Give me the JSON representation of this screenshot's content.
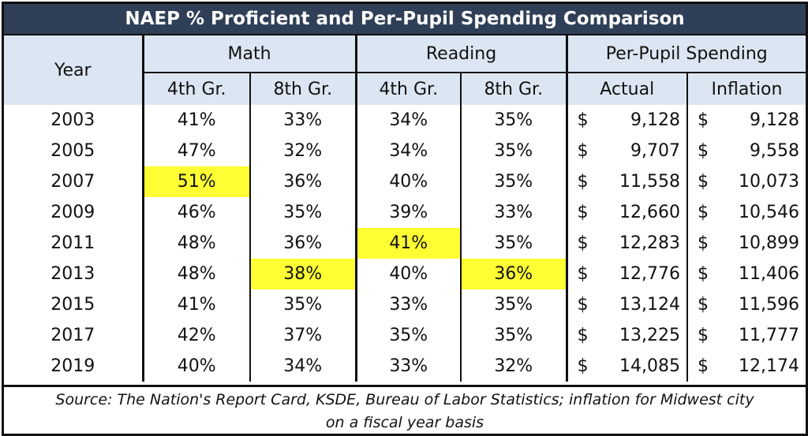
{
  "chart_data": {
    "type": "table",
    "title": "NAEP % Proficient and Per-Pupil Spending Comparison",
    "header": {
      "year": "Year",
      "groups": [
        "Math",
        "Reading",
        "Per-Pupil Spending"
      ],
      "columns": [
        "4th Gr.",
        "8th Gr.",
        "4th Gr.",
        "8th Gr.",
        "Actual",
        "Inflation"
      ]
    },
    "currency_symbol": "$",
    "rows": [
      {
        "year": "2003",
        "math4": "41%",
        "math8": "33%",
        "read4": "34%",
        "read8": "35%",
        "actual": "9,128",
        "inflation": "9,128"
      },
      {
        "year": "2005",
        "math4": "47%",
        "math8": "32%",
        "read4": "34%",
        "read8": "35%",
        "actual": "9,707",
        "inflation": "9,558"
      },
      {
        "year": "2007",
        "math4": "51%",
        "math8": "36%",
        "read4": "40%",
        "read8": "35%",
        "actual": "11,558",
        "inflation": "10,073"
      },
      {
        "year": "2009",
        "math4": "46%",
        "math8": "35%",
        "read4": "39%",
        "read8": "33%",
        "actual": "12,660",
        "inflation": "10,546"
      },
      {
        "year": "2011",
        "math4": "48%",
        "math8": "36%",
        "read4": "41%",
        "read8": "35%",
        "actual": "12,283",
        "inflation": "10,899"
      },
      {
        "year": "2013",
        "math4": "48%",
        "math8": "38%",
        "read4": "40%",
        "read8": "36%",
        "actual": "12,776",
        "inflation": "11,406"
      },
      {
        "year": "2015",
        "math4": "41%",
        "math8": "35%",
        "read4": "33%",
        "read8": "35%",
        "actual": "13,124",
        "inflation": "11,596"
      },
      {
        "year": "2017",
        "math4": "42%",
        "math8": "37%",
        "read4": "35%",
        "read8": "35%",
        "actual": "13,225",
        "inflation": "11,777"
      },
      {
        "year": "2019",
        "math4": "40%",
        "math8": "34%",
        "read4": "33%",
        "read8": "32%",
        "actual": "14,085",
        "inflation": "12,174"
      }
    ],
    "highlighted_cells": [
      {
        "year": "2007",
        "column": "math4"
      },
      {
        "year": "2013",
        "column": "math8"
      },
      {
        "year": "2011",
        "column": "read4"
      },
      {
        "year": "2013",
        "column": "read8"
      }
    ],
    "highlight_color": "#ffff33",
    "header_color": "#2f3f57",
    "subheader_color": "#dce6f2",
    "source_line1": "Source: The Nation's Report Card, KSDE, Bureau of Labor Statistics; inflation for Midwest city",
    "source_line2": "on a fiscal year basis"
  }
}
